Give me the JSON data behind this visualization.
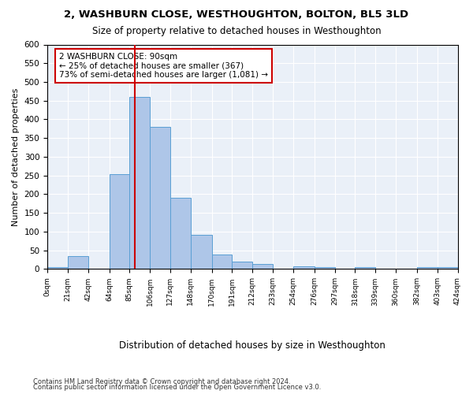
{
  "title1": "2, WASHBURN CLOSE, WESTHOUGHTON, BOLTON, BL5 3LD",
  "title2": "Size of property relative to detached houses in Westhoughton",
  "xlabel": "Distribution of detached houses by size in Westhoughton",
  "ylabel": "Number of detached properties",
  "bar_edges": [
    0,
    21,
    42,
    64,
    85,
    106,
    127,
    148,
    170,
    191,
    212,
    233,
    254,
    276,
    297,
    318,
    339,
    360,
    382,
    403,
    424
  ],
  "bar_heights": [
    5,
    35,
    0,
    253,
    460,
    380,
    190,
    92,
    38,
    20,
    13,
    0,
    8,
    6,
    0,
    6,
    0,
    0,
    6,
    5
  ],
  "bar_color": "#aec6e8",
  "bar_edge_color": "#5a9fd4",
  "property_size": 90,
  "vline_color": "#cc0000",
  "annotation_text": "2 WASHBURN CLOSE: 90sqm\n← 25% of detached houses are smaller (367)\n73% of semi-detached houses are larger (1,081) →",
  "annotation_box_color": "#ffffff",
  "annotation_box_edge_color": "#cc0000",
  "ylim": [
    0,
    600
  ],
  "yticks": [
    0,
    50,
    100,
    150,
    200,
    250,
    300,
    350,
    400,
    450,
    500,
    550,
    600
  ],
  "xtick_labels": [
    "0sqm",
    "21sqm",
    "42sqm",
    "64sqm",
    "85sqm",
    "106sqm",
    "127sqm",
    "148sqm",
    "170sqm",
    "191sqm",
    "212sqm",
    "233sqm",
    "254sqm",
    "276sqm",
    "297sqm",
    "318sqm",
    "339sqm",
    "360sqm",
    "382sqm",
    "403sqm",
    "424sqm"
  ],
  "footnote1": "Contains HM Land Registry data © Crown copyright and database right 2024.",
  "footnote2": "Contains public sector information licensed under the Open Government Licence v3.0.",
  "plot_bg_color": "#eaf0f8"
}
